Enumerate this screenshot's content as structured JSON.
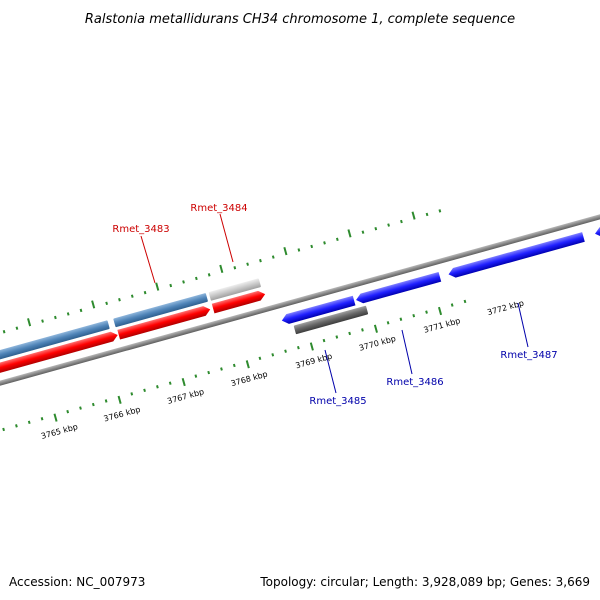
{
  "title": "Ralstonia metallidurans CH34 chromosome 1, complete sequence",
  "footer": {
    "accession": "Accession: NC_007973",
    "summary": "Topology: circular; Length: 3,928,089 bp; Genes: 3,669"
  },
  "scale_labels": [
    "3765 kbp",
    "3766 kbp",
    "3767 kbp",
    "3768 kbp",
    "3769 kbp",
    "3770 kbp",
    "3771 kbp",
    "3772 kbp"
  ],
  "gene_labels": {
    "rmet_3483": "Rmet_3483",
    "rmet_3484": "Rmet_3484",
    "rmet_3485": "Rmet_3485",
    "rmet_3486": "Rmet_3486",
    "rmet_3487": "Rmet_3487"
  },
  "colors": {
    "backbone": "#8a8a8a",
    "forward_gene": "#ff0000",
    "reverse_gene": "#1f1fff",
    "forward_cds": "#4f84b8",
    "reverse_cds": "#666666",
    "light_feature": "#c8c8c8",
    "tick": "#2e8b2e",
    "forward_label": "#cc0000",
    "reverse_label": "#0000aa"
  }
}
